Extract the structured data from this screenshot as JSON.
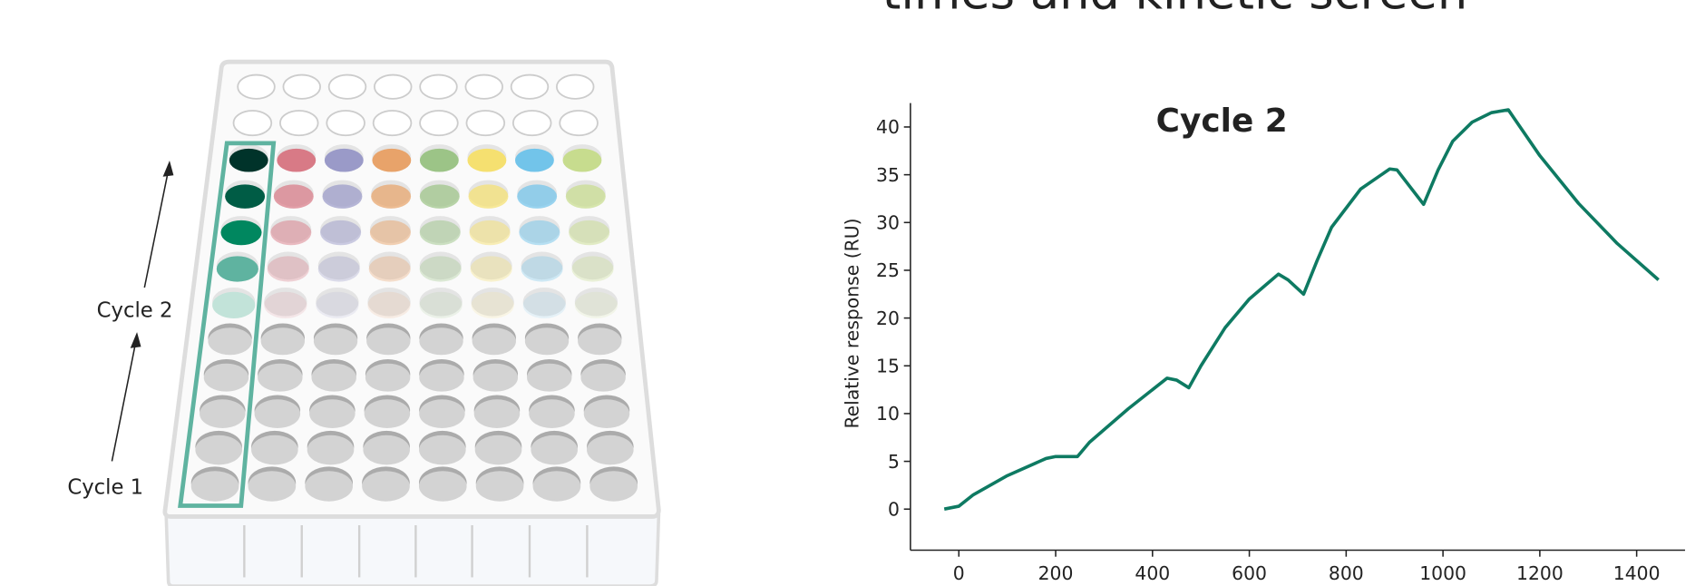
{
  "heading": "times and kinetic screen",
  "plate": {
    "cycle_labels": [
      "Cycle 2",
      "Cycle 1"
    ]
  },
  "chart_data": {
    "type": "line",
    "title": "Cycle 2",
    "y_label": "Relative response (RU)",
    "x": [
      -30,
      0,
      30,
      100,
      180,
      200,
      245,
      270,
      350,
      430,
      450,
      475,
      500,
      550,
      600,
      660,
      680,
      712,
      740,
      770,
      830,
      890,
      905,
      960,
      990,
      1020,
      1060,
      1100,
      1135,
      1200,
      1280,
      1360,
      1445
    ],
    "series": [
      {
        "name": "Cycle 2",
        "color": "#0e7a62",
        "values": [
          0,
          0.3,
          1.5,
          3.5,
          5.3,
          5.5,
          5.5,
          7,
          10.5,
          13.7,
          13.5,
          12.7,
          15,
          19,
          22,
          24.6,
          24,
          22.5,
          26,
          29.5,
          33.5,
          35.6,
          35.5,
          31.9,
          35.5,
          38.5,
          40.5,
          41.5,
          41.8,
          37,
          32,
          27.8,
          24
        ]
      }
    ],
    "xlim": [
      -100,
      1500
    ],
    "ylim": [
      -4.3,
      42.5
    ],
    "xticks": [
      0,
      200,
      400,
      600,
      800,
      1000,
      1200,
      1400
    ],
    "yticks": [
      0,
      5,
      10,
      15,
      20,
      25,
      30,
      35,
      40
    ]
  }
}
